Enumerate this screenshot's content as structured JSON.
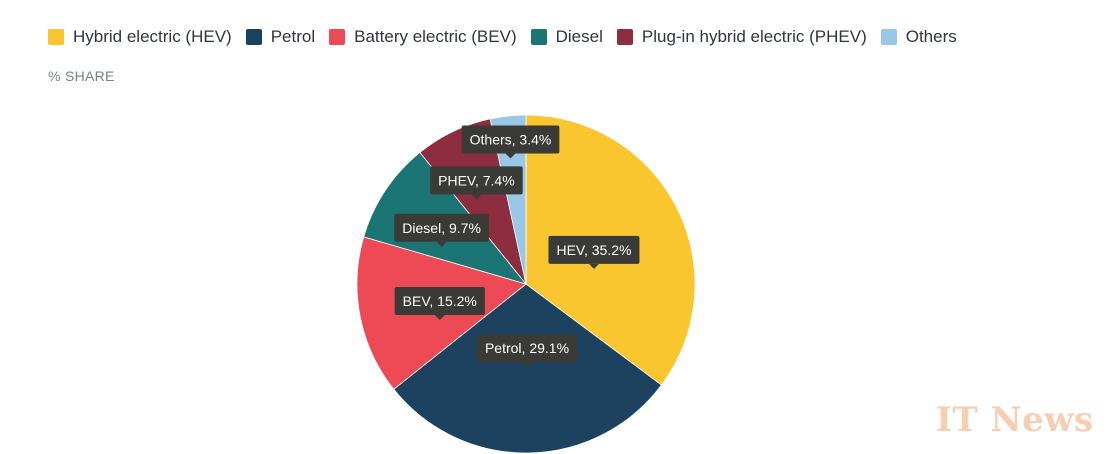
{
  "legend": [
    {
      "label": "Hybrid electric (HEV)",
      "color": "#f9c62f"
    },
    {
      "label": "Petrol",
      "color": "#1d4260"
    },
    {
      "label": "Battery electric (BEV)",
      "color": "#ee4a55"
    },
    {
      "label": "Diesel",
      "color": "#1b7575"
    },
    {
      "label": "Plug-in hybrid electric (PHEV)",
      "color": "#8e2d3f"
    },
    {
      "label": "Others",
      "color": "#99c7e6"
    }
  ],
  "unit_label": "% SHARE",
  "watermark": "IT News",
  "chart_data": {
    "type": "pie",
    "unit": "% SHARE",
    "slices": [
      {
        "name": "Hybrid electric (HEV)",
        "short": "HEV",
        "value": 35.2,
        "label": "HEV, 35.2%",
        "color": "#f9c62f"
      },
      {
        "name": "Petrol",
        "short": "Petrol",
        "value": 29.1,
        "label": "Petrol, 29.1%",
        "color": "#1d4260"
      },
      {
        "name": "Battery electric (BEV)",
        "short": "BEV",
        "value": 15.2,
        "label": "BEV, 15.2%",
        "color": "#ee4a55"
      },
      {
        "name": "Diesel",
        "short": "Diesel",
        "value": 9.7,
        "label": "Diesel, 9.7%",
        "color": "#1b7575"
      },
      {
        "name": "Plug-in hybrid electric (PHEV)",
        "short": "PHEV",
        "value": 7.4,
        "label": "PHEV, 7.4%",
        "color": "#8e2d3f"
      },
      {
        "name": "Others",
        "short": "Others",
        "value": 3.4,
        "label": "Others, 3.4%",
        "color": "#99c7e6"
      }
    ],
    "legend_position": "top-left"
  }
}
